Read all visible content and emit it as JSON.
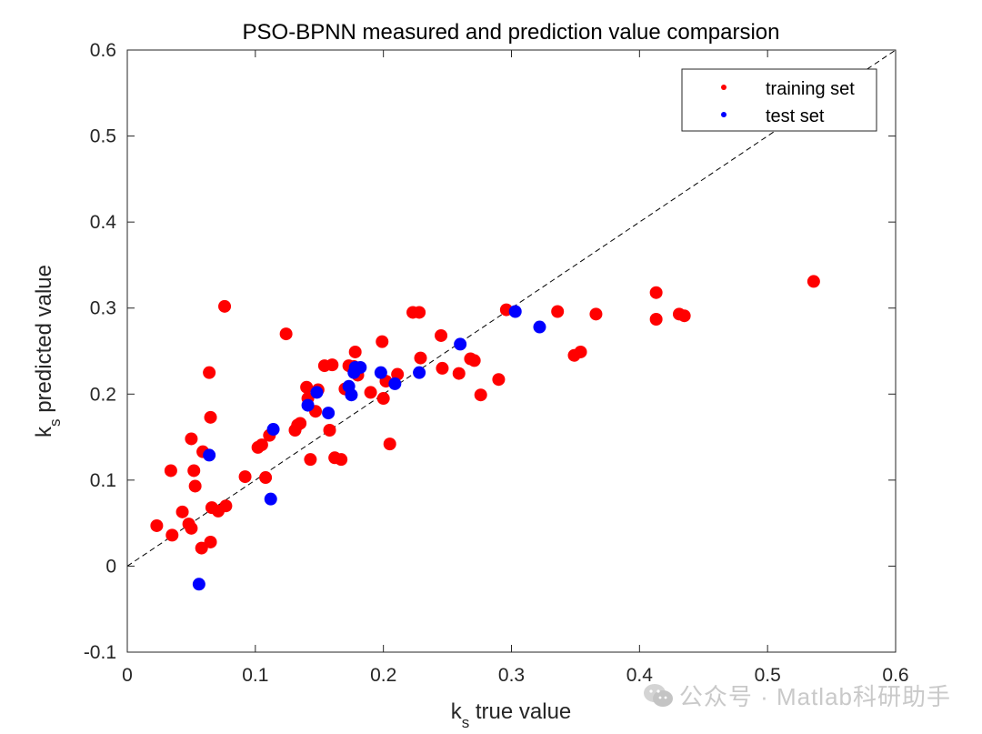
{
  "chart_data": {
    "type": "scatter",
    "title": "PSO-BPNN measured and prediction value comparsion",
    "xlabel": {
      "main": "k",
      "sub": "s",
      "rest": " true value"
    },
    "ylabel": {
      "main": "k",
      "sub": "s",
      "rest": " predicted value"
    },
    "xlim": [
      0,
      0.6
    ],
    "ylim": [
      -0.1,
      0.6
    ],
    "xticks": [
      0,
      0.1,
      0.2,
      0.3,
      0.4,
      0.5,
      0.6
    ],
    "xtick_labels": [
      "0",
      "0.1",
      "0.2",
      "0.3",
      "0.4",
      "0.5",
      "0.6"
    ],
    "yticks": [
      -0.1,
      0,
      0.1,
      0.2,
      0.3,
      0.4,
      0.5,
      0.6
    ],
    "ytick_labels": [
      "-0.1",
      "0",
      "0.1",
      "0.2",
      "0.3",
      "0.4",
      "0.5",
      "0.6"
    ],
    "grid": false,
    "legend_position": "top-right",
    "reference_line": {
      "name": "y = x",
      "from": [
        0,
        0
      ],
      "to": [
        0.6,
        0.6
      ],
      "style": "dashed"
    },
    "series": [
      {
        "name": "training set",
        "color": "#ff0000",
        "points": [
          [
            0.023,
            0.047
          ],
          [
            0.034,
            0.111
          ],
          [
            0.035,
            0.036
          ],
          [
            0.043,
            0.063
          ],
          [
            0.048,
            0.049
          ],
          [
            0.05,
            0.148
          ],
          [
            0.05,
            0.044
          ],
          [
            0.052,
            0.111
          ],
          [
            0.053,
            0.093
          ],
          [
            0.058,
            0.021
          ],
          [
            0.059,
            0.133
          ],
          [
            0.064,
            0.225
          ],
          [
            0.065,
            0.173
          ],
          [
            0.065,
            0.028
          ],
          [
            0.066,
            0.068
          ],
          [
            0.071,
            0.064
          ],
          [
            0.076,
            0.302
          ],
          [
            0.077,
            0.07
          ],
          [
            0.092,
            0.104
          ],
          [
            0.102,
            0.138
          ],
          [
            0.105,
            0.141
          ],
          [
            0.108,
            0.103
          ],
          [
            0.111,
            0.152
          ],
          [
            0.124,
            0.27
          ],
          [
            0.131,
            0.158
          ],
          [
            0.133,
            0.164
          ],
          [
            0.135,
            0.166
          ],
          [
            0.14,
            0.208
          ],
          [
            0.141,
            0.195
          ],
          [
            0.143,
            0.124
          ],
          [
            0.147,
            0.18
          ],
          [
            0.149,
            0.205
          ],
          [
            0.154,
            0.233
          ],
          [
            0.158,
            0.158
          ],
          [
            0.16,
            0.234
          ],
          [
            0.162,
            0.126
          ],
          [
            0.167,
            0.124
          ],
          [
            0.17,
            0.206
          ],
          [
            0.173,
            0.233
          ],
          [
            0.177,
            0.232
          ],
          [
            0.178,
            0.249
          ],
          [
            0.18,
            0.222
          ],
          [
            0.19,
            0.202
          ],
          [
            0.199,
            0.261
          ],
          [
            0.2,
            0.195
          ],
          [
            0.202,
            0.215
          ],
          [
            0.205,
            0.142
          ],
          [
            0.211,
            0.223
          ],
          [
            0.223,
            0.295
          ],
          [
            0.228,
            0.295
          ],
          [
            0.229,
            0.242
          ],
          [
            0.245,
            0.268
          ],
          [
            0.246,
            0.23
          ],
          [
            0.259,
            0.224
          ],
          [
            0.268,
            0.241
          ],
          [
            0.271,
            0.239
          ],
          [
            0.276,
            0.199
          ],
          [
            0.29,
            0.217
          ],
          [
            0.296,
            0.298
          ],
          [
            0.336,
            0.296
          ],
          [
            0.349,
            0.245
          ],
          [
            0.354,
            0.249
          ],
          [
            0.366,
            0.293
          ],
          [
            0.413,
            0.318
          ],
          [
            0.413,
            0.287
          ],
          [
            0.431,
            0.293
          ],
          [
            0.435,
            0.291
          ],
          [
            0.536,
            0.331
          ]
        ]
      },
      {
        "name": "test set",
        "color": "#0000ff",
        "points": [
          [
            0.056,
            -0.021
          ],
          [
            0.064,
            0.129
          ],
          [
            0.112,
            0.078
          ],
          [
            0.114,
            0.159
          ],
          [
            0.141,
            0.187
          ],
          [
            0.148,
            0.202
          ],
          [
            0.157,
            0.178
          ],
          [
            0.173,
            0.209
          ],
          [
            0.175,
            0.199
          ],
          [
            0.177,
            0.225
          ],
          [
            0.178,
            0.231
          ],
          [
            0.182,
            0.231
          ],
          [
            0.198,
            0.225
          ],
          [
            0.209,
            0.212
          ],
          [
            0.228,
            0.225
          ],
          [
            0.26,
            0.258
          ],
          [
            0.303,
            0.296
          ],
          [
            0.322,
            0.278
          ]
        ]
      }
    ]
  },
  "watermark": {
    "text": "公众号 · Matlab科研助手"
  }
}
